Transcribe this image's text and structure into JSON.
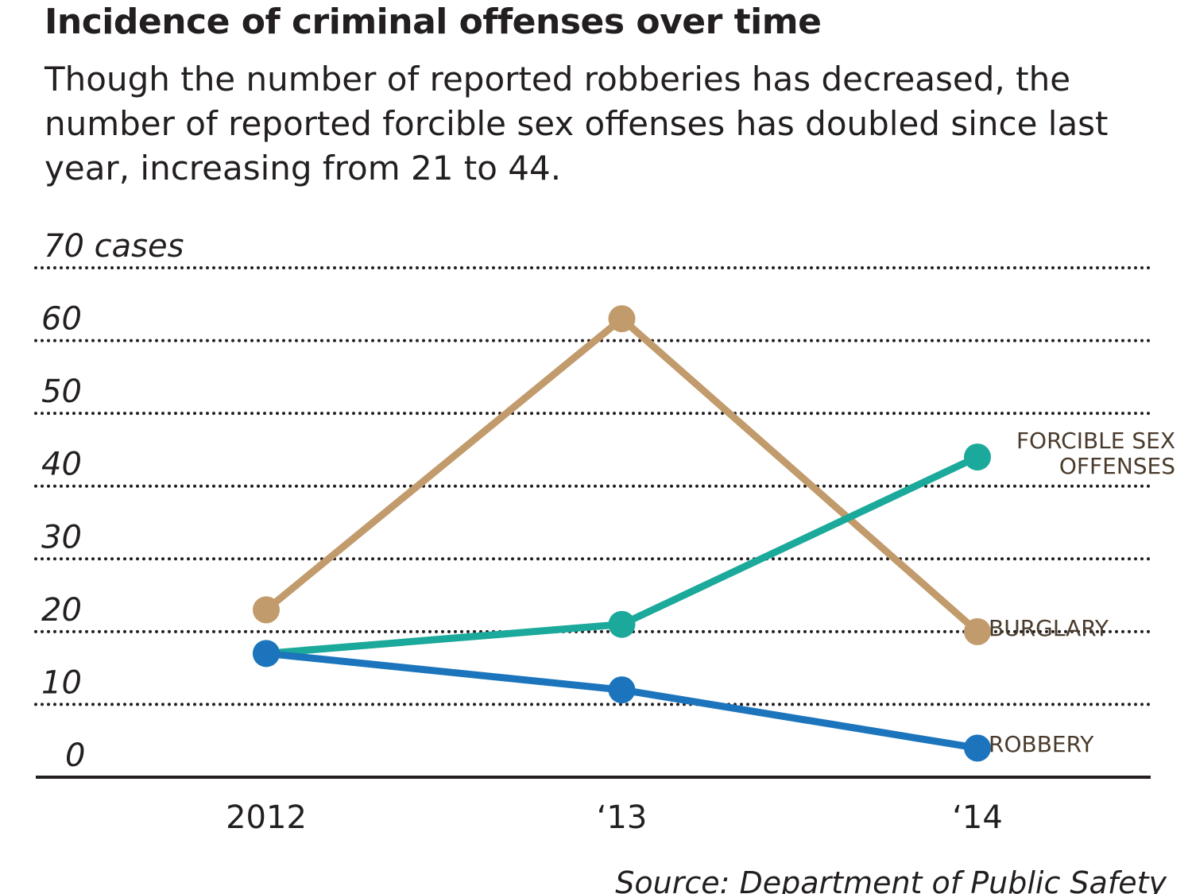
{
  "chart_data": {
    "type": "line",
    "title": "Incidence of criminal offenses over time",
    "subtitle": "Though the number of reported robberies has decreased, the number of reported forcible sex offenses has doubled since last year, increasing from 21 to 44.",
    "categories": [
      "2012",
      "‘13",
      "‘14"
    ],
    "series": [
      {
        "name": "BURGLARY",
        "color": "#c29b6c",
        "values": [
          23,
          63,
          20
        ]
      },
      {
        "name": "FORCIBLE SEX OFFENSES",
        "color": "#1aa99a",
        "values": [
          17,
          21,
          44
        ]
      },
      {
        "name": "ROBBERY",
        "color": "#1c75bc",
        "values": [
          17,
          12,
          4
        ]
      }
    ],
    "ylim": [
      0,
      70
    ],
    "yticks": [
      0,
      10,
      20,
      30,
      40,
      50,
      60,
      {
        "value": 70,
        "label": "70 cases"
      }
    ],
    "grid": true,
    "source": "Source: Department of Public Safety"
  }
}
